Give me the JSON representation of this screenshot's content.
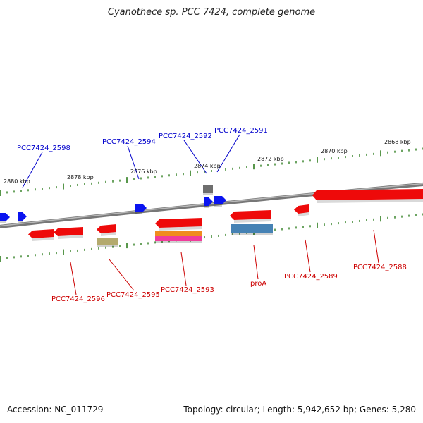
{
  "title": "Cyanothece sp. PCC 7424, complete genome",
  "footer": {
    "accession": "Accession: NC_011729",
    "summary": "Topology: circular; Length: 5,942,652 bp; Genes: 5,280"
  },
  "coordinate_labels": [
    "2880 kbp",
    "2878 kbp",
    "2876 kbp",
    "2874 kbp",
    "2872 kbp",
    "2870 kbp",
    "2868 kbp"
  ],
  "gene_labels": {
    "forward": [
      "PCC7424_2598",
      "PCC7424_2594",
      "PCC7424_2592",
      "PCC7424_2591"
    ],
    "reverse": [
      "PCC7424_2596",
      "PCC7424_2595",
      "PCC7424_2593",
      "proA",
      "PCC7424_2589",
      "PCC7424_2588"
    ]
  },
  "colors": {
    "forward_label": "#0000cc",
    "reverse_label": "#cc0000",
    "backbone": "#777777",
    "tick": "#2e7d1e",
    "forward_cds": "#0a14f0",
    "reverse_cds": "#ee0a0a",
    "gene_grey": "#6e6e6e",
    "gene_orange": "#f08c1e",
    "gene_pink": "#f03c9b",
    "gene_olive": "#b4aa6e",
    "gene_steelblue": "#4682b4"
  }
}
